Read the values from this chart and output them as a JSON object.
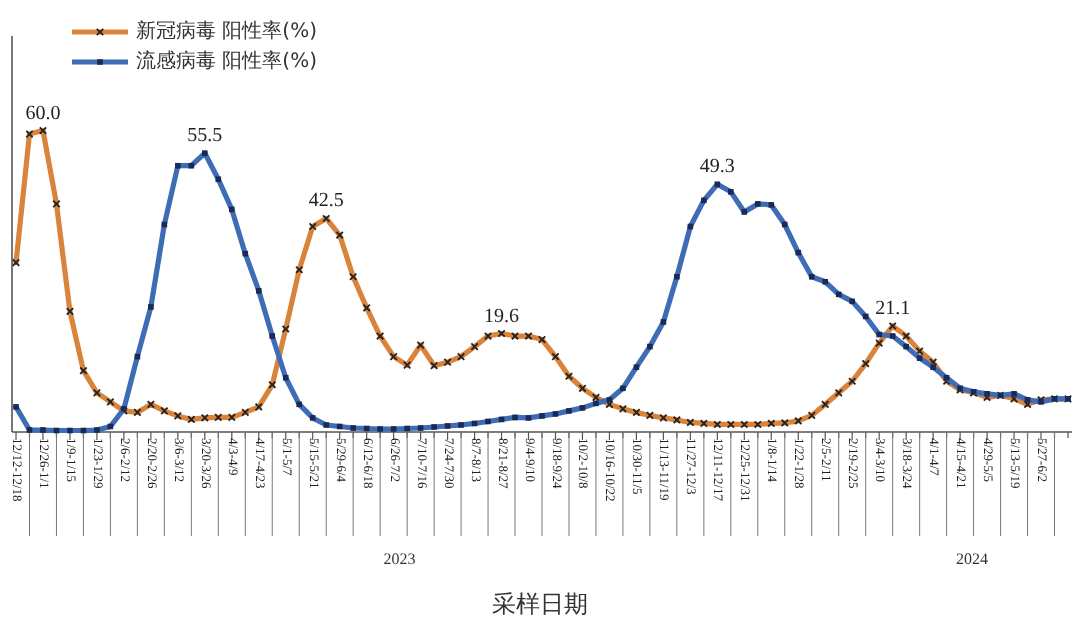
{
  "chart_data": {
    "type": "line",
    "xlabel": "采样日期",
    "legend": "top left",
    "tick_labels": "x",
    "categories": [
      "12/12-12/18",
      null,
      "12/26-1/1",
      null,
      "1/9-1/15",
      null,
      "1/23-1/29",
      null,
      "2/6-2/12",
      null,
      "2/20-2/26",
      null,
      "3/6-3/12",
      null,
      "3/20-3/26",
      null,
      "4/3-4/9",
      null,
      "4/17-4/23",
      null,
      "5/1-5/7",
      null,
      "5/15-5/21",
      null,
      "5/29-6/4",
      null,
      "6/12-6/18",
      null,
      "6/26-7/2",
      null,
      "7/10-7/16",
      null,
      "7/24-7/30",
      null,
      "8/7-8/13",
      null,
      "8/21-8/27",
      null,
      "9/4-9/10",
      null,
      "9/18-9/24",
      null,
      "10/2-10/8",
      null,
      "10/16-10/22",
      null,
      "10/30-11/5",
      null,
      "11/13-11/19",
      null,
      "11/27-12/3",
      null,
      "12/11-12/17",
      null,
      "12/25-12/31",
      null,
      "1/8-1/14",
      null,
      "1/22-1/28",
      null,
      "2/5-2/11",
      null,
      "2/19-2/25",
      null,
      "3/4-3/10",
      null,
      "3/18-3/24",
      null,
      "4/1-4/7",
      null,
      "4/15-4/21",
      null,
      "4/29-5/5",
      null,
      "5/13-5/19",
      null,
      "5/27-6/2",
      null,
      null
    ],
    "series": [
      {
        "name": "新冠病毒 阳性率(%)",
        "color": "#d9833b",
        "marker": "cross",
        "values": [
          33.7,
          59.3,
          60.0,
          45.4,
          24,
          12.2,
          7.8,
          6,
          4.2,
          3.9,
          5.5,
          4.2,
          3.2,
          2.5,
          2.8,
          2.9,
          2.9,
          3.9,
          5,
          9.4,
          20.5,
          32.3,
          40.9,
          42.5,
          39.2,
          30.9,
          24.7,
          19.1,
          15,
          13.3,
          17.3,
          13.2,
          13.9,
          15,
          17,
          19.1,
          19.6,
          19.1,
          19.1,
          18.4,
          15,
          11.1,
          8.7,
          6.9,
          5.5,
          4.6,
          3.9,
          3.3,
          2.8,
          2.4,
          1.9,
          1.7,
          1.5,
          1.5,
          1.5,
          1.5,
          1.7,
          1.8,
          2.2,
          3.3,
          5.5,
          7.8,
          10.1,
          13.6,
          17.7,
          21.1,
          19.1,
          16.1,
          13.9,
          10.1,
          8.4,
          7.8,
          6.9,
          7.3,
          6.6,
          5.5,
          6.4,
          6.6,
          6.6
        ],
        "value_labels": [
          null,
          null,
          "60.0",
          null,
          null,
          null,
          null,
          null,
          null,
          null,
          null,
          null,
          null,
          null,
          null,
          null,
          null,
          null,
          null,
          null,
          null,
          null,
          null,
          "42.5",
          null,
          null,
          null,
          null,
          null,
          null,
          null,
          null,
          null,
          null,
          null,
          null,
          "19.6",
          null,
          null,
          null,
          null,
          null,
          null,
          null,
          null,
          null,
          null,
          null,
          null,
          null,
          null,
          null,
          null,
          null,
          null,
          null,
          null,
          null,
          null,
          null,
          null,
          null,
          null,
          null,
          null,
          "21.1",
          null,
          null,
          null,
          null,
          null,
          null,
          null,
          null,
          null,
          null,
          null,
          null,
          null
        ]
      },
      {
        "name": "流感病毒 阳性率(%)",
        "color": "#3e6db5",
        "marker": "square",
        "values": [
          5,
          0.4,
          0.4,
          0.3,
          0.3,
          0.3,
          0.4,
          1.1,
          4.6,
          15,
          24.9,
          41.3,
          53,
          53,
          55.5,
          50.3,
          44.3,
          35.5,
          28.1,
          19.1,
          10.8,
          5.5,
          2.8,
          1.4,
          1.1,
          0.8,
          0.7,
          0.6,
          0.6,
          0.7,
          0.8,
          1,
          1.2,
          1.4,
          1.7,
          2.1,
          2.5,
          2.9,
          2.8,
          3.2,
          3.6,
          4.2,
          4.8,
          5.7,
          6.4,
          8.7,
          12.9,
          17,
          21.9,
          30.9,
          40.9,
          46.1,
          49.3,
          47.8,
          43.8,
          45.4,
          45.2,
          41.3,
          35.7,
          30.9,
          29.9,
          27.4,
          26,
          23,
          19.4,
          19.1,
          17,
          14.7,
          12.9,
          10.8,
          8.7,
          8,
          7.6,
          7.3,
          7.6,
          6.4,
          6,
          6.6,
          6.6
        ],
        "value_labels": [
          null,
          null,
          null,
          null,
          null,
          null,
          null,
          null,
          null,
          null,
          null,
          null,
          null,
          null,
          "55.5",
          null,
          null,
          null,
          null,
          null,
          null,
          null,
          null,
          null,
          null,
          null,
          null,
          null,
          null,
          null,
          null,
          null,
          null,
          null,
          null,
          null,
          null,
          null,
          null,
          null,
          null,
          null,
          null,
          null,
          null,
          null,
          null,
          null,
          null,
          null,
          null,
          null,
          "49.3",
          null,
          null,
          null,
          null,
          null,
          null,
          null,
          null,
          null,
          null,
          null,
          null,
          null,
          null,
          null,
          null,
          null,
          null,
          null,
          null,
          null,
          null,
          null,
          null,
          null,
          null
        ]
      }
    ],
    "annotations": [
      "2023",
      "2024"
    ]
  }
}
